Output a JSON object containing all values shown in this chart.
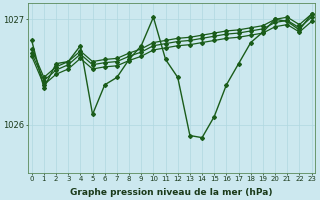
{
  "xlabel": "Graphe pression niveau de la mer (hPa)",
  "bg_color": "#cce8ef",
  "grid_color": "#b0d8e0",
  "line_color": "#1a5c1a",
  "ylim": [
    1025.55,
    1027.15
  ],
  "yticks": [
    1026,
    1027
  ],
  "ytick_labels": [
    "1026",
    "1027"
  ],
  "series": [
    [
      1026.72,
      1026.45,
      1026.55,
      1026.6,
      1026.7,
      1026.6,
      1026.62,
      1026.63,
      1026.68,
      1026.72,
      1026.78,
      1026.8,
      1026.82,
      1026.83,
      1026.85,
      1026.87,
      1026.89,
      1026.9,
      1026.92,
      1026.94,
      1027.0,
      1027.02,
      1026.95,
      1027.05
    ],
    [
      1026.68,
      1026.42,
      1026.52,
      1026.57,
      1026.67,
      1026.57,
      1026.59,
      1026.6,
      1026.65,
      1026.69,
      1026.75,
      1026.77,
      1026.79,
      1026.8,
      1026.82,
      1026.84,
      1026.86,
      1026.87,
      1026.89,
      1026.91,
      1026.97,
      1026.99,
      1026.92,
      1027.02
    ],
    [
      1026.65,
      1026.38,
      1026.48,
      1026.53,
      1026.63,
      1026.53,
      1026.55,
      1026.56,
      1026.61,
      1026.65,
      1026.71,
      1026.73,
      1026.75,
      1026.76,
      1026.78,
      1026.8,
      1026.82,
      1026.83,
      1026.85,
      1026.87,
      1026.93,
      1026.95,
      1026.88,
      1026.98
    ],
    [
      1026.8,
      1026.35,
      1026.58,
      1026.6,
      1026.75,
      1026.1,
      1026.38,
      1026.45,
      1026.62,
      1026.75,
      1027.02,
      1026.62,
      1026.45,
      1025.9,
      1025.88,
      1026.08,
      1026.38,
      1026.58,
      1026.78,
      1026.88,
      1027.0,
      1026.98,
      1026.9,
      1027.05
    ]
  ]
}
